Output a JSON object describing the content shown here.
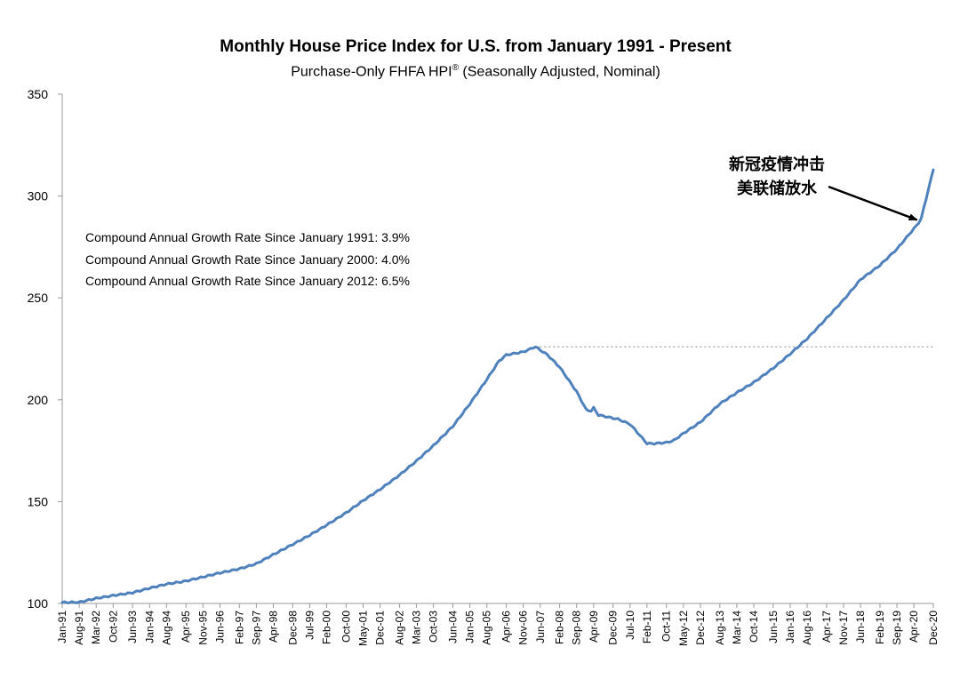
{
  "chart_data": {
    "type": "line",
    "title": "Monthly House Price Index for U.S. from January 1991 - Present",
    "subtitle_main": "Purchase-Only FHFA HPI",
    "subtitle_mark": "®",
    "subtitle_tail": " (Seasonally Adjusted, Nominal)",
    "ylim": [
      100,
      350
    ],
    "y_ticks": [
      100,
      150,
      200,
      250,
      300,
      350
    ],
    "x_start": "1991-01",
    "x_end": "2020-12",
    "x_tick_labels": [
      "Jan-91",
      "Aug-91",
      "Mar-92",
      "Oct-92",
      "Jun-93",
      "Jan-94",
      "Aug-94",
      "Apr-95",
      "Nov-95",
      "Jun-96",
      "Feb-97",
      "Sep-97",
      "Apr-98",
      "Dec-98",
      "Jul-99",
      "Feb-00",
      "Oct-00",
      "May-01",
      "Dec-01",
      "Aug-02",
      "Mar-03",
      "Oct-03",
      "Jun-04",
      "Jan-05",
      "Aug-05",
      "Apr-06",
      "Nov-06",
      "Jun-07",
      "Feb-08",
      "Sep-08",
      "Apr-09",
      "Dec-09",
      "Jul-10",
      "Feb-11",
      "Oct-11",
      "May-12",
      "Dec-12",
      "Aug-13",
      "Mar-14",
      "Oct-14",
      "Jun-15",
      "Jan-16",
      "Aug-16",
      "Apr-17",
      "Nov-17",
      "Jun-18",
      "Feb-19",
      "Sep-19",
      "Apr-20",
      "Dec-20"
    ],
    "series": [
      {
        "name": "Purchase-Only FHFA HPI",
        "color": "#4f81bd",
        "anchors": [
          [
            "1991-01",
            100.5
          ],
          [
            "1991-08",
            100.6
          ],
          [
            "1992-03",
            102.5
          ],
          [
            "1992-10",
            103.9
          ],
          [
            "1993-06",
            105.3
          ],
          [
            "1994-01",
            107.5
          ],
          [
            "1994-08",
            109.5
          ],
          [
            "1995-04",
            111.0
          ],
          [
            "1995-11",
            113.0
          ],
          [
            "1996-06",
            115.0
          ],
          [
            "1997-02",
            117.0
          ],
          [
            "1997-09",
            119.5
          ],
          [
            "1998-04",
            124.0
          ],
          [
            "1998-12",
            129.0
          ],
          [
            "1999-07",
            133.5
          ],
          [
            "2000-02",
            138.5
          ],
          [
            "2000-10",
            144.5
          ],
          [
            "2001-05",
            150.5
          ],
          [
            "2001-12",
            156.0
          ],
          [
            "2002-08",
            163.0
          ],
          [
            "2003-03",
            170.0
          ],
          [
            "2003-10",
            177.5
          ],
          [
            "2004-06",
            187.0
          ],
          [
            "2005-01",
            198.0
          ],
          [
            "2005-08",
            210.0
          ],
          [
            "2006-01",
            219.0
          ],
          [
            "2006-04",
            222.0
          ],
          [
            "2006-11",
            223.5
          ],
          [
            "2007-04",
            226.0
          ],
          [
            "2007-09",
            222.0
          ],
          [
            "2008-02",
            216.0
          ],
          [
            "2008-09",
            204.0
          ],
          [
            "2009-01",
            195.0
          ],
          [
            "2009-03",
            194.5
          ],
          [
            "2009-04",
            196.0
          ],
          [
            "2009-06",
            192.5
          ],
          [
            "2009-12",
            191.0
          ],
          [
            "2010-02",
            190.5
          ],
          [
            "2010-04",
            189.5
          ],
          [
            "2010-07",
            188.0
          ],
          [
            "2010-10",
            184.0
          ],
          [
            "2011-02",
            178.5
          ],
          [
            "2011-05",
            178.5
          ],
          [
            "2011-10",
            179.0
          ],
          [
            "2012-01",
            180.0
          ],
          [
            "2012-05",
            183.5
          ],
          [
            "2012-12",
            189.0
          ],
          [
            "2013-08",
            198.0
          ],
          [
            "2014-03",
            203.5
          ],
          [
            "2014-10",
            208.5
          ],
          [
            "2015-06",
            215.5
          ],
          [
            "2016-01",
            222.5
          ],
          [
            "2016-08",
            230.0
          ],
          [
            "2017-04",
            240.0
          ],
          [
            "2017-11",
            249.0
          ],
          [
            "2018-06",
            259.0
          ],
          [
            "2019-02",
            266.0
          ],
          [
            "2019-09",
            274.0
          ],
          [
            "2020-04",
            284.0
          ],
          [
            "2020-06",
            287.0
          ],
          [
            "2020-07",
            289.0
          ],
          [
            "2020-12",
            313.0
          ]
        ]
      }
    ],
    "reference_line": {
      "value": 226.0,
      "from": "2007-04",
      "to": "2020-12",
      "style": "dotted"
    },
    "annotations": {
      "stats": [
        "Compound Annual Growth Rate Since January 1991:  3.9%",
        "Compound Annual Growth Rate Since January 2000:  4.0%",
        "Compound Annual Growth Rate Since January 2012:  6.5%"
      ],
      "arrow_note_line1": "新冠疫情冲击",
      "arrow_note_line2": "美联储放水",
      "arrow_target": [
        "2020-06",
        287.0
      ]
    }
  }
}
